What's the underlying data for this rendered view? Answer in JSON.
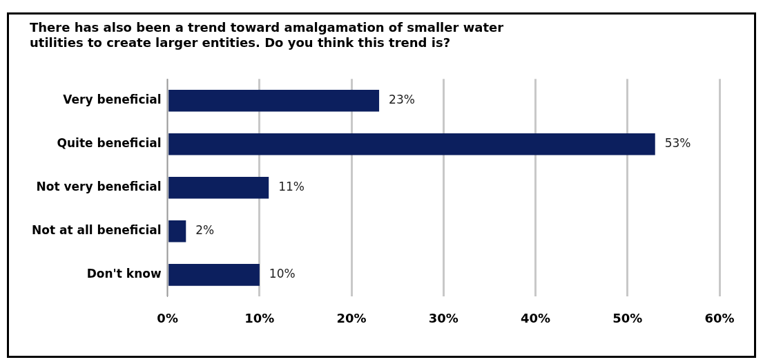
{
  "chart_data": {
    "type": "bar",
    "orientation": "horizontal",
    "title": [
      "There has also been a trend toward amalgamation of smaller water",
      "utilities to create larger entities. Do you think this trend is?"
    ],
    "categories": [
      "Very beneficial",
      "Quite beneficial",
      "Not very beneficial",
      "Not at all beneficial",
      "Don't know"
    ],
    "values": [
      23,
      53,
      11,
      2,
      10
    ],
    "color": "#0c1f5e",
    "xlim": [
      0,
      60
    ],
    "xticks": [
      {
        "value": 0,
        "label": "0%"
      },
      {
        "value": 10,
        "label": "10%"
      },
      {
        "value": 20,
        "label": "20%"
      },
      {
        "value": 30,
        "label": "30%"
      },
      {
        "value": 40,
        "label": "40%"
      },
      {
        "value": 50,
        "label": "50%"
      },
      {
        "value": 60,
        "label": "60%"
      }
    ],
    "value_labels": [
      "23%",
      "53%",
      "11%",
      "2%",
      "10%"
    ],
    "grid": "x",
    "legend": false
  }
}
